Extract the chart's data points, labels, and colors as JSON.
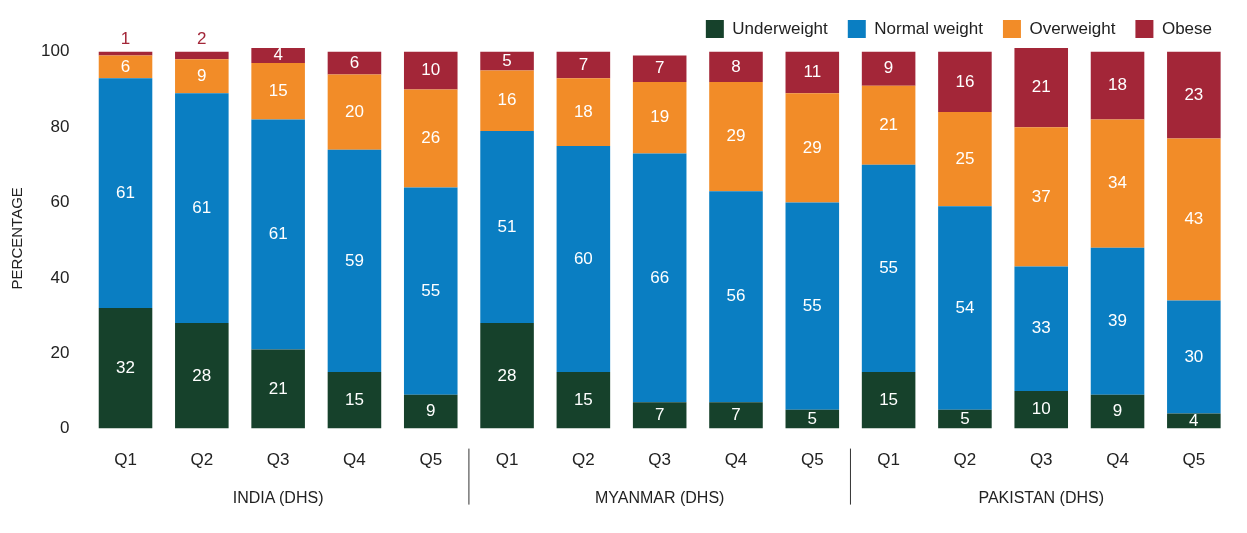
{
  "chart_data": {
    "type": "bar",
    "stacked": true,
    "ylabel": "PERCENTAGE",
    "categories": [
      "Q1",
      "Q2",
      "Q3",
      "Q4",
      "Q5",
      "Q1",
      "Q2",
      "Q3",
      "Q4",
      "Q5",
      "Q1",
      "Q2",
      "Q3",
      "Q4",
      "Q5"
    ],
    "series": [
      {
        "name": "Underweight",
        "color": "#16412b",
        "values": [
          32,
          28,
          21,
          15,
          9,
          28,
          15,
          7,
          7,
          5,
          15,
          5,
          10,
          9,
          4
        ]
      },
      {
        "name": "Normal weight",
        "color": "#0a7ec2",
        "values": [
          61,
          61,
          61,
          59,
          55,
          51,
          60,
          66,
          56,
          55,
          55,
          54,
          33,
          39,
          30
        ]
      },
      {
        "name": "Overweight",
        "color": "#f28c28",
        "values": [
          6,
          9,
          15,
          20,
          26,
          16,
          18,
          19,
          29,
          29,
          21,
          25,
          37,
          34,
          43
        ]
      },
      {
        "name": "Obese",
        "color": "#a32638",
        "values": [
          1,
          2,
          4,
          6,
          10,
          5,
          7,
          7,
          8,
          11,
          9,
          16,
          21,
          18,
          23
        ]
      }
    ],
    "ylim": [
      0,
      101
    ],
    "yticks": [
      0,
      20,
      40,
      60,
      80,
      100
    ],
    "grid": false,
    "legend": "top right",
    "data_labels": true,
    "annotations": [
      "INDIA (DHS)",
      "MYANMAR (DHS)",
      "PAKISTAN (DHS)"
    ]
  }
}
